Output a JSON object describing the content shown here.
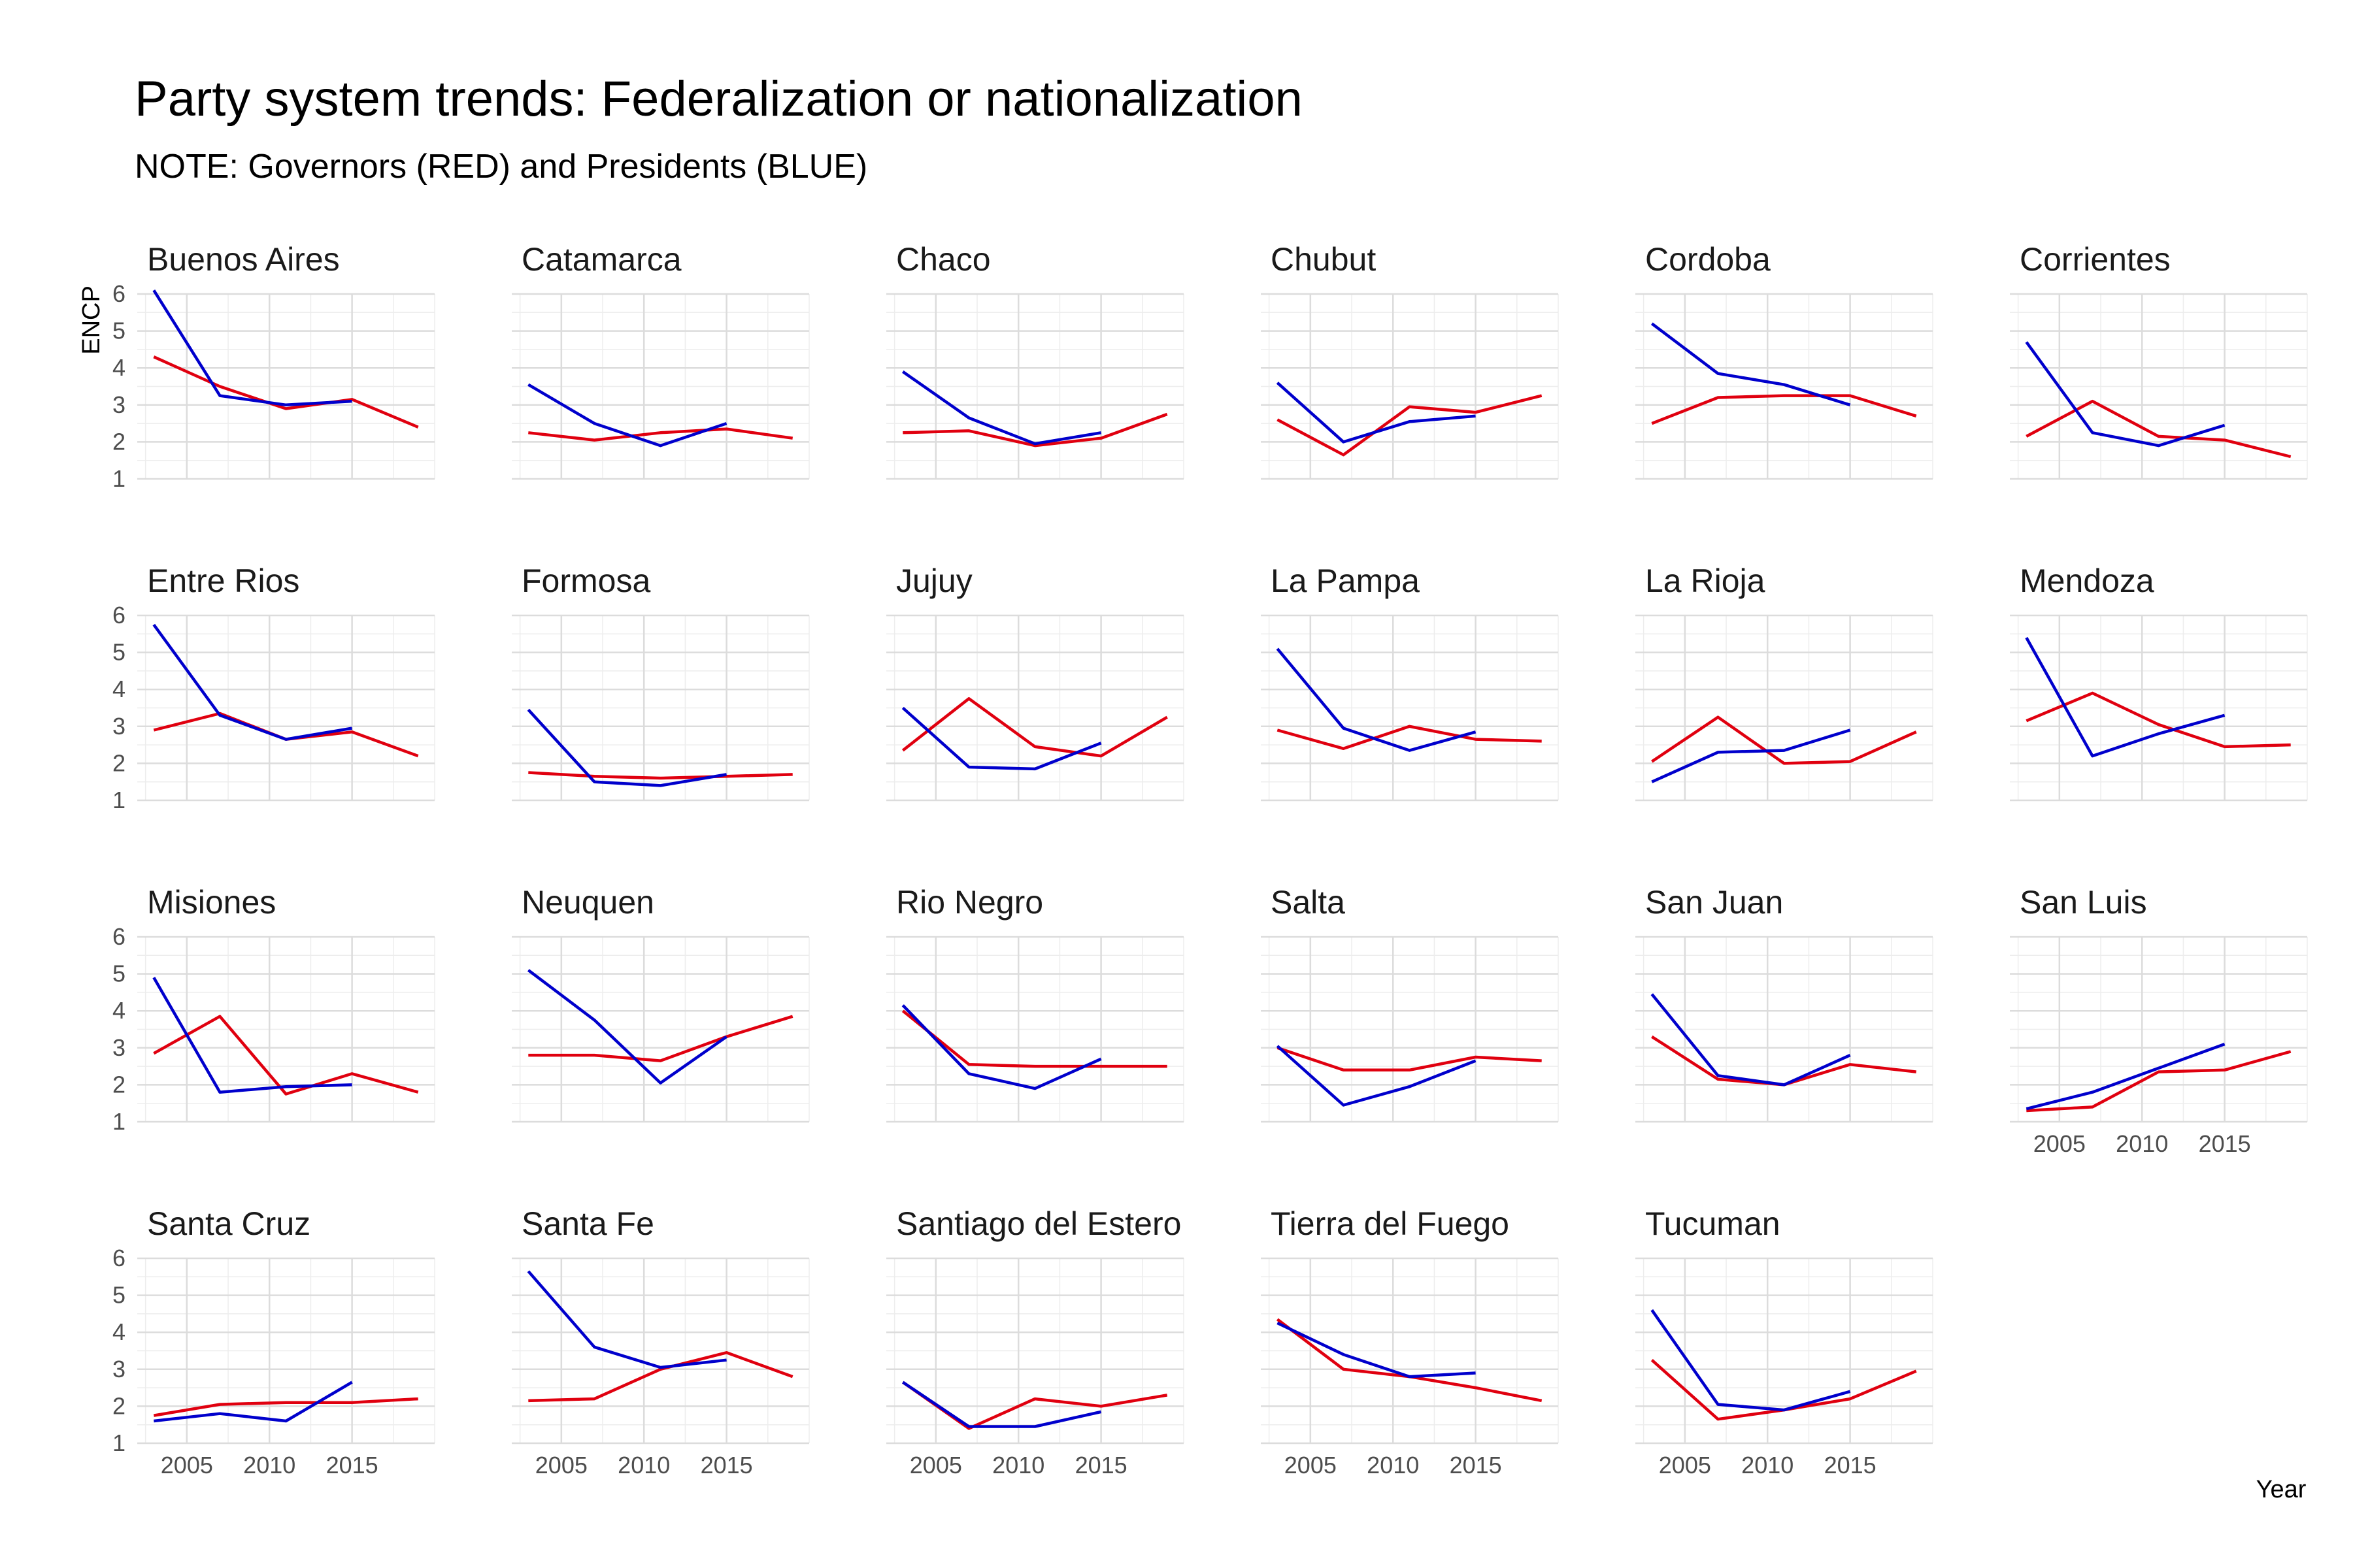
{
  "title": "Party system trends: Federalization or nationalization",
  "subtitle": "NOTE: Governors (RED) and Presidents (BLUE)",
  "chart_data": {
    "type": "line",
    "xlabel": "Year",
    "ylabel": "ENCP",
    "xlim": [
      2002,
      2020
    ],
    "ylim": [
      1,
      6
    ],
    "x_ticks": [
      2005,
      2010,
      2015
    ],
    "y_ticks": [
      1,
      2,
      3,
      4,
      5,
      6
    ],
    "grid": true,
    "series_colors": {
      "Governors": "#e0000f",
      "Presidents": "#0000cc"
    },
    "facets": [
      {
        "name": "Buenos Aires",
        "governors": {
          "x": [
            2003,
            2007,
            2011,
            2015,
            2019
          ],
          "y": [
            4.3,
            3.5,
            2.9,
            3.15,
            2.4
          ]
        },
        "presidents": {
          "x": [
            2003,
            2007,
            2011,
            2015
          ],
          "y": [
            6.1,
            3.25,
            3.0,
            3.1
          ]
        }
      },
      {
        "name": "Catamarca",
        "governors": {
          "x": [
            2003,
            2007,
            2011,
            2015,
            2019
          ],
          "y": [
            2.25,
            2.05,
            2.25,
            2.35,
            2.1
          ]
        },
        "presidents": {
          "x": [
            2003,
            2007,
            2011,
            2015
          ],
          "y": [
            3.55,
            2.5,
            1.9,
            2.5
          ]
        }
      },
      {
        "name": "Chaco",
        "governors": {
          "x": [
            2003,
            2007,
            2011,
            2015,
            2019
          ],
          "y": [
            2.25,
            2.3,
            1.9,
            2.1,
            2.75
          ]
        },
        "presidents": {
          "x": [
            2003,
            2007,
            2011,
            2015
          ],
          "y": [
            3.9,
            2.65,
            1.95,
            2.25
          ]
        }
      },
      {
        "name": "Chubut",
        "governors": {
          "x": [
            2003,
            2007,
            2011,
            2015,
            2019
          ],
          "y": [
            2.6,
            1.65,
            2.95,
            2.8,
            3.25
          ]
        },
        "presidents": {
          "x": [
            2003,
            2007,
            2011,
            2015
          ],
          "y": [
            3.6,
            2.0,
            2.55,
            2.7
          ]
        }
      },
      {
        "name": "Cordoba",
        "governors": {
          "x": [
            2003,
            2007,
            2011,
            2015,
            2019
          ],
          "y": [
            2.5,
            3.2,
            3.25,
            3.25,
            2.7
          ]
        },
        "presidents": {
          "x": [
            2003,
            2007,
            2011,
            2015
          ],
          "y": [
            5.2,
            3.85,
            3.55,
            3.0
          ]
        }
      },
      {
        "name": "Corrientes",
        "governors": {
          "x": [
            2003,
            2007,
            2011,
            2015,
            2019
          ],
          "y": [
            2.15,
            3.1,
            2.15,
            2.05,
            1.6
          ]
        },
        "presidents": {
          "x": [
            2003,
            2007,
            2011,
            2015
          ],
          "y": [
            4.7,
            2.25,
            1.9,
            2.45
          ]
        }
      },
      {
        "name": "Entre Rios",
        "governors": {
          "x": [
            2003,
            2007,
            2011,
            2015,
            2019
          ],
          "y": [
            2.9,
            3.35,
            2.65,
            2.85,
            2.2
          ]
        },
        "presidents": {
          "x": [
            2003,
            2007,
            2011,
            2015
          ],
          "y": [
            5.75,
            3.3,
            2.65,
            2.95
          ]
        }
      },
      {
        "name": "Formosa",
        "governors": {
          "x": [
            2003,
            2007,
            2011,
            2015,
            2019
          ],
          "y": [
            1.75,
            1.65,
            1.6,
            1.65,
            1.7
          ]
        },
        "presidents": {
          "x": [
            2003,
            2007,
            2011,
            2015
          ],
          "y": [
            3.45,
            1.5,
            1.4,
            1.7
          ]
        }
      },
      {
        "name": "Jujuy",
        "governors": {
          "x": [
            2003,
            2007,
            2011,
            2015,
            2019
          ],
          "y": [
            2.35,
            3.75,
            2.45,
            2.2,
            3.25
          ]
        },
        "presidents": {
          "x": [
            2003,
            2007,
            2011,
            2015
          ],
          "y": [
            3.5,
            1.9,
            1.85,
            2.55
          ]
        }
      },
      {
        "name": "La Pampa",
        "governors": {
          "x": [
            2003,
            2007,
            2011,
            2015,
            2019
          ],
          "y": [
            2.9,
            2.4,
            3.0,
            2.65,
            2.6
          ]
        },
        "presidents": {
          "x": [
            2003,
            2007,
            2011,
            2015
          ],
          "y": [
            5.1,
            2.95,
            2.35,
            2.85
          ]
        }
      },
      {
        "name": "La Rioja",
        "governors": {
          "x": [
            2003,
            2007,
            2011,
            2015,
            2019
          ],
          "y": [
            2.05,
            3.25,
            2.0,
            2.05,
            2.85
          ]
        },
        "presidents": {
          "x": [
            2003,
            2007,
            2011,
            2015
          ],
          "y": [
            1.5,
            2.3,
            2.35,
            2.9
          ]
        }
      },
      {
        "name": "Mendoza",
        "governors": {
          "x": [
            2003,
            2007,
            2011,
            2015,
            2019
          ],
          "y": [
            3.15,
            3.9,
            3.05,
            2.45,
            2.5
          ]
        },
        "presidents": {
          "x": [
            2003,
            2007,
            2011,
            2015
          ],
          "y": [
            5.4,
            2.2,
            2.8,
            3.3
          ]
        }
      },
      {
        "name": "Misiones",
        "governors": {
          "x": [
            2003,
            2007,
            2011,
            2015,
            2019
          ],
          "y": [
            2.85,
            3.85,
            1.75,
            2.3,
            1.8
          ]
        },
        "presidents": {
          "x": [
            2003,
            2007,
            2011,
            2015
          ],
          "y": [
            4.9,
            1.8,
            1.95,
            2.0
          ]
        }
      },
      {
        "name": "Neuquen",
        "governors": {
          "x": [
            2003,
            2007,
            2011,
            2015,
            2019
          ],
          "y": [
            2.8,
            2.8,
            2.65,
            3.3,
            3.85
          ]
        },
        "presidents": {
          "x": [
            2003,
            2007,
            2011,
            2015
          ],
          "y": [
            5.1,
            3.75,
            2.05,
            3.3
          ]
        }
      },
      {
        "name": "Rio Negro",
        "governors": {
          "x": [
            2003,
            2007,
            2011,
            2015,
            2019
          ],
          "y": [
            4.0,
            2.55,
            2.5,
            2.5,
            2.5
          ]
        },
        "presidents": {
          "x": [
            2003,
            2007,
            2011,
            2015
          ],
          "y": [
            4.15,
            2.3,
            1.9,
            2.7
          ]
        }
      },
      {
        "name": "Salta",
        "governors": {
          "x": [
            2003,
            2007,
            2011,
            2015,
            2019
          ],
          "y": [
            3.0,
            2.4,
            2.4,
            2.75,
            2.65
          ]
        },
        "presidents": {
          "x": [
            2003,
            2007,
            2011,
            2015
          ],
          "y": [
            3.05,
            1.45,
            1.95,
            2.65
          ]
        }
      },
      {
        "name": "San Juan",
        "governors": {
          "x": [
            2003,
            2007,
            2011,
            2015,
            2019
          ],
          "y": [
            3.3,
            2.15,
            2.0,
            2.55,
            2.35
          ]
        },
        "presidents": {
          "x": [
            2003,
            2007,
            2011,
            2015
          ],
          "y": [
            4.45,
            2.25,
            2.0,
            2.8
          ]
        }
      },
      {
        "name": "San Luis",
        "governors": {
          "x": [
            2003,
            2007,
            2011,
            2015,
            2019
          ],
          "y": [
            1.3,
            1.4,
            2.35,
            2.4,
            2.9
          ]
        },
        "presidents": {
          "x": [
            2003,
            2007,
            2011,
            2015
          ],
          "y": [
            1.35,
            1.8,
            2.45,
            3.1
          ]
        }
      },
      {
        "name": "Santa Cruz",
        "governors": {
          "x": [
            2003,
            2007,
            2011,
            2015,
            2019
          ],
          "y": [
            1.75,
            2.05,
            2.1,
            2.1,
            2.2
          ]
        },
        "presidents": {
          "x": [
            2003,
            2007,
            2011,
            2015
          ],
          "y": [
            1.6,
            1.8,
            1.6,
            2.65
          ]
        }
      },
      {
        "name": "Santa Fe",
        "governors": {
          "x": [
            2003,
            2007,
            2011,
            2015,
            2019
          ],
          "y": [
            2.15,
            2.2,
            3.0,
            3.45,
            2.8
          ]
        },
        "presidents": {
          "x": [
            2003,
            2007,
            2011,
            2015
          ],
          "y": [
            5.65,
            3.6,
            3.05,
            3.25
          ]
        }
      },
      {
        "name": "Santiago del Estero",
        "governors": {
          "x": [
            2003,
            2007,
            2011,
            2015,
            2019
          ],
          "y": [
            2.65,
            1.4,
            2.2,
            2.0,
            2.3
          ]
        },
        "presidents": {
          "x": [
            2003,
            2007,
            2011,
            2015
          ],
          "y": [
            2.65,
            1.45,
            1.45,
            1.85
          ]
        }
      },
      {
        "name": "Tierra del Fuego",
        "governors": {
          "x": [
            2003,
            2007,
            2011,
            2015,
            2019
          ],
          "y": [
            4.35,
            3.0,
            2.8,
            2.5,
            2.15
          ]
        },
        "presidents": {
          "x": [
            2003,
            2007,
            2011,
            2015
          ],
          "y": [
            4.25,
            3.4,
            2.8,
            2.9
          ]
        }
      },
      {
        "name": "Tucuman",
        "governors": {
          "x": [
            2003,
            2007,
            2011,
            2015,
            2019
          ],
          "y": [
            3.25,
            1.65,
            1.9,
            2.2,
            2.95
          ]
        },
        "presidents": {
          "x": [
            2003,
            2007,
            2011,
            2015
          ],
          "y": [
            4.6,
            2.05,
            1.9,
            2.4
          ]
        }
      }
    ]
  }
}
